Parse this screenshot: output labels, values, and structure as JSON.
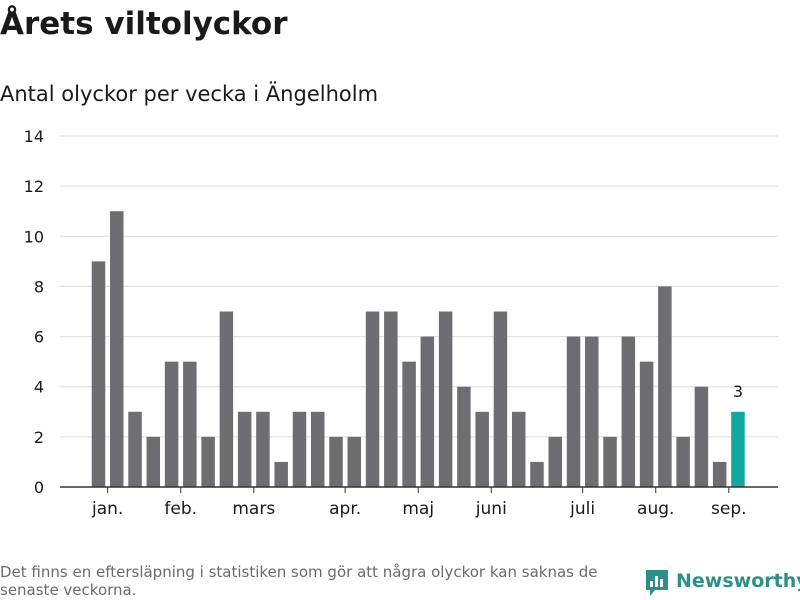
{
  "title": "Årets viltolyckor",
  "subtitle": "Antal olyckor per vecka i Ängelholm",
  "footnote": "Det finns en eftersläpning i statistiken som gör att några olyckor kan saknas de senaste veckorna.",
  "brand": "Newsworthy",
  "colors": {
    "bar": "#6e6e72",
    "highlight": "#13a89e",
    "grid": "#dcdcdc",
    "axis": "#333333",
    "text": "#1a1a1a",
    "brand": "#2f8f87"
  },
  "chart_data": {
    "type": "bar",
    "values": [
      9,
      11,
      3,
      2,
      5,
      5,
      2,
      7,
      3,
      3,
      1,
      3,
      3,
      2,
      2,
      7,
      7,
      5,
      6,
      7,
      4,
      3,
      7,
      3,
      1,
      2,
      6,
      6,
      2,
      6,
      5,
      8,
      2,
      4,
      1,
      3
    ],
    "highlight_last": true,
    "data_labels": [
      {
        "index": 35,
        "text": "3"
      }
    ],
    "ylim": [
      0,
      14
    ],
    "yticks": [
      0,
      2,
      4,
      6,
      8,
      10,
      12,
      14
    ],
    "month_labels": [
      {
        "label": "jan.",
        "bar_index": 0.5
      },
      {
        "label": "feb.",
        "bar_index": 4.5
      },
      {
        "label": "mars",
        "bar_index": 8.5
      },
      {
        "label": "apr.",
        "bar_index": 13.5
      },
      {
        "label": "maj",
        "bar_index": 17.5
      },
      {
        "label": "juni",
        "bar_index": 21.5
      },
      {
        "label": "juli",
        "bar_index": 26.5
      },
      {
        "label": "aug.",
        "bar_index": 30.5
      },
      {
        "label": "sep.",
        "bar_index": 34.5
      }
    ],
    "grid": true,
    "legend": "none"
  }
}
